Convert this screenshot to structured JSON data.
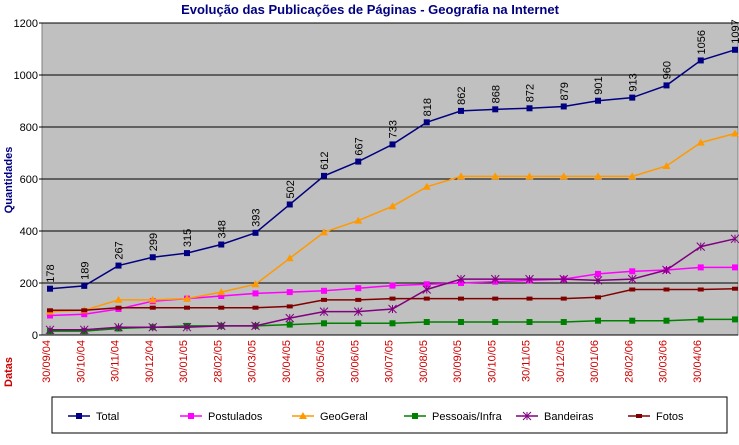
{
  "chart_data": {
    "type": "line",
    "title": "Evolução das Publicações de Páginas - Geografia na Internet",
    "ylabel": "Quantidades",
    "xlabel": "Datas",
    "categories": [
      "30/09/04",
      "30/10/04",
      "30/11/04",
      "30/12/04",
      "30/01/05",
      "28/02/05",
      "30/03/05",
      "30/04/05",
      "30/05/05",
      "30/06/05",
      "30/07/05",
      "30/08/05",
      "30/09/05",
      "30/10/05",
      "30/11/05",
      "30/12/05",
      "30/01/06",
      "28/02/06",
      "30/03/06",
      "30/04/06",
      null
    ],
    "ylim": [
      0,
      1200
    ],
    "yticks": [
      0,
      200,
      400,
      600,
      800,
      1000,
      1200
    ],
    "grid": true,
    "legend": "bottom",
    "series": [
      {
        "name": "Total",
        "color": "#000080",
        "marker": "square",
        "labels": true,
        "values": [
          178,
          189,
          267,
          299,
          315,
          348,
          393,
          502,
          612,
          667,
          733,
          818,
          862,
          868,
          872,
          879,
          901,
          913,
          960,
          1056,
          1097
        ]
      },
      {
        "name": "Postulados",
        "color": "#ff00ff",
        "marker": "square",
        "values": [
          75,
          80,
          100,
          130,
          140,
          150,
          160,
          165,
          170,
          180,
          190,
          195,
          200,
          205,
          210,
          215,
          235,
          245,
          250,
          260,
          260
        ]
      },
      {
        "name": "GeoGeral",
        "color": "#ff9900",
        "marker": "triangle",
        "values": [
          90,
          95,
          135,
          135,
          140,
          165,
          195,
          295,
          395,
          440,
          495,
          570,
          610,
          610,
          610,
          610,
          610,
          610,
          650,
          740,
          775
        ]
      },
      {
        "name": "Pessoais/Infra",
        "color": "#008000",
        "marker": "square",
        "values": [
          15,
          15,
          25,
          30,
          35,
          35,
          35,
          40,
          45,
          45,
          45,
          50,
          50,
          50,
          50,
          50,
          55,
          55,
          55,
          60,
          60
        ]
      },
      {
        "name": "Bandeiras",
        "color": "#800080",
        "marker": "star",
        "values": [
          20,
          20,
          30,
          30,
          30,
          35,
          35,
          65,
          90,
          90,
          100,
          175,
          215,
          215,
          215,
          215,
          210,
          215,
          250,
          340,
          370
        ]
      },
      {
        "name": "Fotos",
        "color": "#800000",
        "marker": "dash",
        "values": [
          95,
          95,
          105,
          105,
          105,
          105,
          105,
          110,
          135,
          135,
          140,
          140,
          140,
          140,
          140,
          140,
          145,
          175,
          175,
          175,
          178
        ]
      }
    ]
  }
}
